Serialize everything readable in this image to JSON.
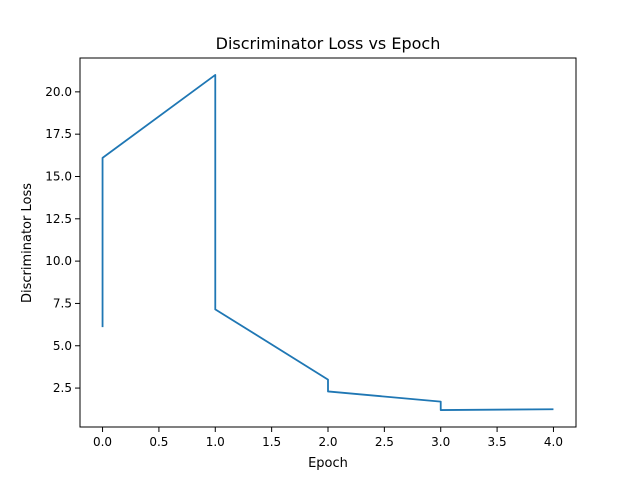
{
  "chart_data": {
    "type": "line",
    "title": "Discriminator Loss vs Epoch",
    "xlabel": "Epoch",
    "ylabel": "Discriminator Loss",
    "xlim": [
      -0.2,
      4.2
    ],
    "ylim": [
      0.2,
      22.0
    ],
    "xticks": [
      0.0,
      0.5,
      1.0,
      1.5,
      2.0,
      2.5,
      3.0,
      3.5,
      4.0
    ],
    "xtick_labels": [
      "0.0",
      "0.5",
      "1.0",
      "1.5",
      "2.0",
      "2.5",
      "3.0",
      "3.5",
      "4.0"
    ],
    "yticks": [
      2.5,
      5.0,
      7.5,
      10.0,
      12.5,
      15.0,
      17.5,
      20.0
    ],
    "ytick_labels": [
      "2.5",
      "5.0",
      "7.5",
      "10.0",
      "12.5",
      "15.0",
      "17.5",
      "20.0"
    ],
    "grid": false,
    "series": [
      {
        "color": "#1f77b4",
        "x": [
          0,
          0,
          1,
          1,
          2,
          2,
          3,
          3,
          4
        ],
        "y": [
          6.1,
          16.1,
          21.0,
          7.15,
          3.0,
          2.3,
          1.7,
          1.2,
          1.25
        ]
      }
    ]
  }
}
